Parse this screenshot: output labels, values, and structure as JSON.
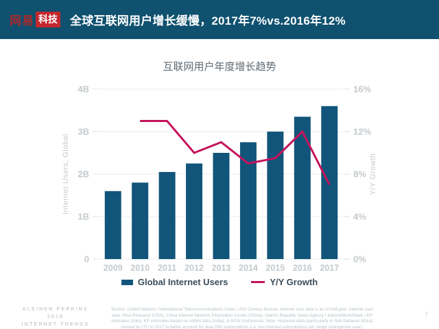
{
  "header": {
    "logo_text_red": "网易",
    "logo_badge": "科技",
    "title": "全球互联网用户增长缓慢，2017年7%vs.2016年12%"
  },
  "colors": {
    "header_bg": "#0f516f",
    "logo_red": "#c3272e",
    "logo_red_dark": "#a8292c",
    "bar": "#12557a",
    "line": "#c4135b"
  },
  "chart_data": {
    "type": "bar",
    "title": "互联网用户年度增长趋势",
    "categories": [
      "2009",
      "2010",
      "2011",
      "2012",
      "2013",
      "2014",
      "2015",
      "2016",
      "2017"
    ],
    "series": [
      {
        "name": "Global Internet Users",
        "type": "bar",
        "axis": "left",
        "color": "#12557a",
        "values": [
          1.6,
          1.8,
          2.05,
          2.25,
          2.5,
          2.75,
          3.0,
          3.35,
          3.6
        ]
      },
      {
        "name": "Y/Y Growth",
        "type": "line",
        "axis": "right",
        "color": "#c4135b",
        "values": [
          null,
          13,
          13,
          10,
          11,
          9,
          9.5,
          12,
          7
        ]
      }
    ],
    "left_axis": {
      "label": "Internet Users, Global",
      "min": 0,
      "max": 4,
      "ticks": [
        {
          "v": 0,
          "label": "0"
        },
        {
          "v": 1,
          "label": "1B"
        },
        {
          "v": 2,
          "label": "2B"
        },
        {
          "v": 3,
          "label": "3B"
        },
        {
          "v": 4,
          "label": "4B"
        }
      ]
    },
    "right_axis": {
      "label": "Y/Y Growth",
      "min": 0,
      "max": 16,
      "ticks": [
        {
          "v": 0,
          "label": "0%"
        },
        {
          "v": 4,
          "label": "4%"
        },
        {
          "v": 8,
          "label": "8%"
        },
        {
          "v": 12,
          "label": "12%"
        },
        {
          "v": 16,
          "label": "16%"
        }
      ]
    },
    "grid": true,
    "legend_position": "bottom"
  },
  "footer": {
    "brand_line1": "KLEINER PERKINS",
    "brand_line2": "2018",
    "brand_line3": "INTERNET TRENDS",
    "source_text": "Source: United Nations / International Telecommunications Union, USA Census Bureau. Internet user data is as of mid-year. Internet user data: Pew Research (USA), China Internet Network Information Center (China), Islamic Republic News Agency / InternetWorldStats / KP estimates (Iran), KP estimates based on IAMAI data (India), & APJII (Indonesia). Note: Historical data (particularly in Sub-Saharan Africa) revised by ITU in 2017 to better account for dual-SIM subscriptions (i.e. two Internet subscriptions per single smartphone user).",
    "page_number": "7"
  }
}
